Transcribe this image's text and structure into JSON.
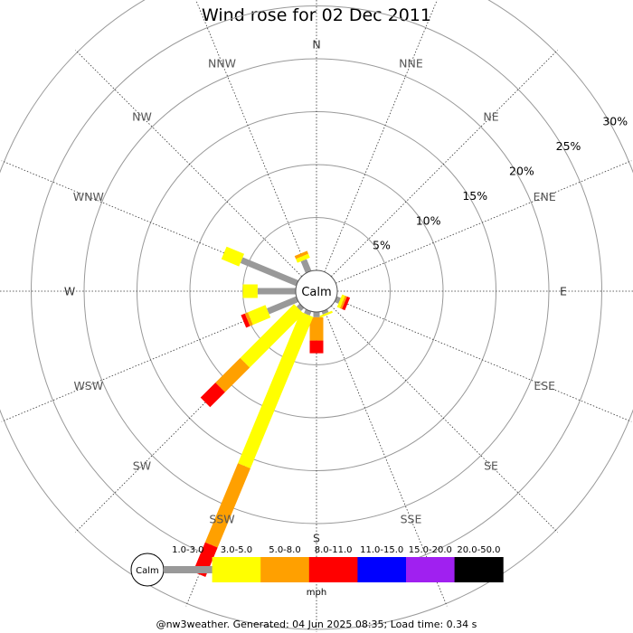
{
  "chart_data": {
    "type": "wind-rose",
    "title": "Wind rose for 02 Dec 2011",
    "center_label": "Calm",
    "directions": [
      "N",
      "NNE",
      "NE",
      "ENE",
      "E",
      "ESE",
      "SE",
      "SSE",
      "S",
      "SSW",
      "SW",
      "WSW",
      "W",
      "WNW",
      "NW",
      "NNW"
    ],
    "ring_labels": [
      "5%",
      "10%",
      "15%",
      "20%",
      "25%",
      "30%"
    ],
    "rlim": [
      0,
      30
    ],
    "speed_bins": [
      "1.0-3.0",
      "3.0-5.0",
      "5.0-8.0",
      "8.0-11.0",
      "11.0-15.0",
      "15.0-20.0",
      "20.0-50.0"
    ],
    "colors": [
      "#999999",
      "#ffff00",
      "#ffa000",
      "#ff0000",
      "#0000ff",
      "#a020f0",
      "#000000"
    ],
    "unit": "mph",
    "series": [
      {
        "direction": "NNW",
        "values": [
          1.2,
          0.4,
          0.3,
          0,
          0,
          0,
          0
        ]
      },
      {
        "direction": "ESE",
        "values": [
          0.4,
          0.3,
          0.2,
          0.3,
          0,
          0,
          0
        ]
      },
      {
        "direction": "SSE",
        "values": [
          0.3,
          0.2,
          0,
          0,
          0,
          0,
          0
        ]
      },
      {
        "direction": "S",
        "values": [
          0.5,
          0,
          2.2,
          1.2,
          0,
          0,
          0
        ]
      },
      {
        "direction": "SSW",
        "values": [
          0.4,
          15.5,
          8.1,
          3.0,
          0,
          0,
          0
        ]
      },
      {
        "direction": "SW",
        "values": [
          0.4,
          7.2,
          3.3,
          2.0,
          0,
          0,
          0
        ]
      },
      {
        "direction": "WSW",
        "values": [
          3.0,
          1.8,
          0.3,
          0.4,
          0,
          0,
          0
        ]
      },
      {
        "direction": "W",
        "values": [
          3.6,
          1.4,
          0,
          0,
          0,
          0,
          0
        ]
      },
      {
        "direction": "WNW",
        "values": [
          5.7,
          1.8,
          0,
          0,
          0,
          0,
          0
        ]
      }
    ]
  },
  "footer": "@nw3weather. Generated: 04 Jun 2025 08:35; Load time: 0.34 s"
}
